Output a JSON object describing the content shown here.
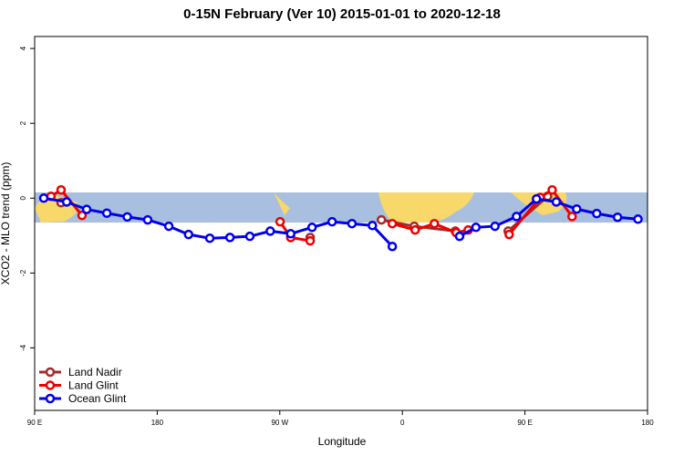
{
  "chart_data": {
    "type": "line",
    "title": "0-15N February (Ver 10)   2015-01-01 to 2020-12-18",
    "x_label": "Longitude",
    "y_label": "XCO2 - MLO trend (ppm)",
    "xlim": [
      90,
      540
    ],
    "ylim": [
      -5.67,
      4.32
    ],
    "xticks": [
      {
        "value": 90,
        "label": "90 E"
      },
      180,
      {
        "value": 270,
        "label": "90 W"
      },
      {
        "value": 360,
        "label": "0"
      },
      {
        "value": 450,
        "label": "90 E"
      },
      {
        "value": 540,
        "label": "180"
      }
    ],
    "yticks": [
      -4,
      -2,
      0,
      2,
      4
    ],
    "legend": "bottom-left",
    "series": [
      {
        "name": "Land Nadir",
        "color": "#a52a2a",
        "x": [
          109.4,
          null,
          292.3,
          null,
          344.6,
          368.7,
          398.9,
          null,
          437.7,
          466.6
        ],
        "values": [
          -0.12,
          null,
          -1.05,
          null,
          -0.58,
          -0.75,
          -0.88,
          null,
          -0.88,
          0.05
        ]
      },
      {
        "name": "Land Glint",
        "color": "#ee0000",
        "x": [
          102,
          109.4,
          124.8,
          null,
          270.2,
          278,
          292.3,
          null,
          352.6,
          369.4,
          383.5,
          399.5,
          408.3,
          null,
          438.4,
          461.2,
          470,
          484.6
        ],
        "values": [
          0.05,
          0.22,
          -0.46,
          null,
          -0.63,
          -1.05,
          -1.14,
          null,
          -0.68,
          -0.85,
          -0.68,
          -0.92,
          -0.85,
          null,
          -0.97,
          0.02,
          0.22,
          -0.49
        ]
      },
      {
        "name": "Ocean Glint",
        "color": "#0000ee",
        "x": [
          96.7,
          113.5,
          128.2,
          143,
          158,
          173,
          188.5,
          203,
          218.6,
          233.4,
          248,
          263,
          278,
          293.7,
          308.4,
          323,
          338,
          352.6,
          null,
          402,
          414,
          428,
          443.8,
          458.5,
          473,
          488,
          502.7,
          518,
          533
        ],
        "values": [
          0.0,
          -0.1,
          -0.3,
          -0.4,
          -0.5,
          -0.58,
          -0.75,
          -0.97,
          -1.07,
          -1.05,
          -1.02,
          -0.88,
          -0.95,
          -0.78,
          -0.63,
          -0.68,
          -0.73,
          -1.29,
          null,
          -1.02,
          -0.78,
          -0.75,
          -0.49,
          -0.02,
          -0.1,
          -0.29,
          -0.41,
          -0.51,
          -0.56
        ]
      }
    ]
  }
}
